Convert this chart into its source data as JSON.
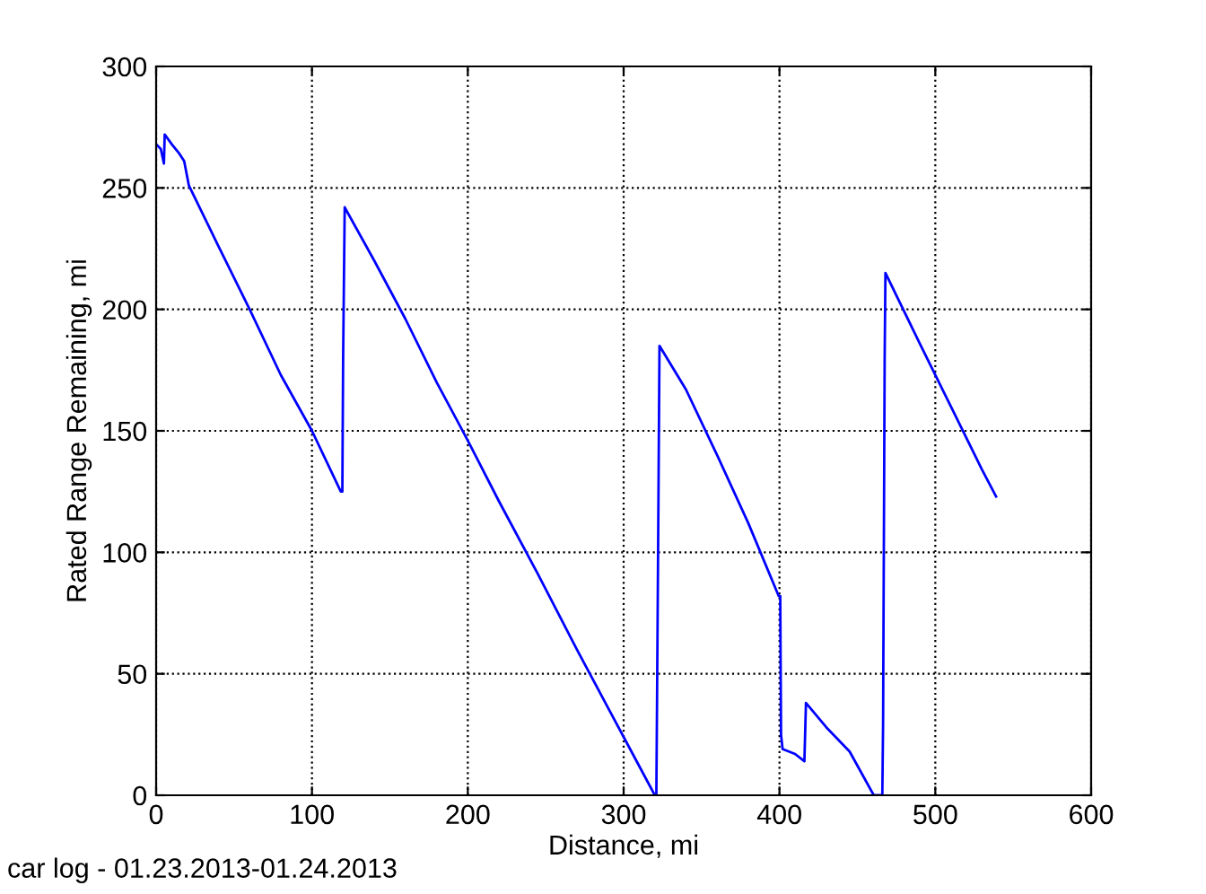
{
  "chart_data": {
    "type": "line",
    "xlabel": "Distance, mi",
    "ylabel": "Rated Range Remaining, mi",
    "annotations": [
      "car log - 01.23.2013-01.24.2013"
    ],
    "series": [
      {
        "color": "#0000ff",
        "x": [
          0,
          3,
          5,
          5.5,
          10,
          15,
          18,
          21,
          40,
          60,
          80,
          100,
          118.5,
          119.5,
          120,
          121,
          140,
          160,
          180,
          200,
          220,
          245,
          270,
          290,
          310,
          320,
          321,
          322,
          323,
          340,
          360,
          380,
          399.5,
          400.5,
          401,
          402,
          410,
          416,
          417,
          430,
          445,
          460.5,
          461,
          466,
          466.5,
          467.5,
          468,
          490,
          510,
          530,
          539
        ],
        "values": [
          268,
          266,
          260,
          272,
          268,
          264,
          261,
          251,
          226,
          200,
          173,
          150,
          125,
          125,
          180,
          242,
          220,
          196,
          170,
          146,
          121,
          91,
          60,
          36,
          12,
          0,
          0,
          90,
          185,
          167,
          140,
          112,
          82,
          82,
          25,
          19,
          17,
          14,
          38,
          28,
          18,
          0,
          0,
          0,
          30,
          180,
          215,
          186,
          160,
          134,
          123
        ]
      }
    ],
    "xlim": [
      0,
      600
    ],
    "ylim": [
      0,
      300
    ],
    "xticks": [
      0,
      100,
      200,
      300,
      400,
      500,
      600
    ],
    "yticks": [
      0,
      50,
      100,
      150,
      200,
      250,
      300
    ],
    "grid": true,
    "line_style": "solid",
    "marker": "none"
  }
}
